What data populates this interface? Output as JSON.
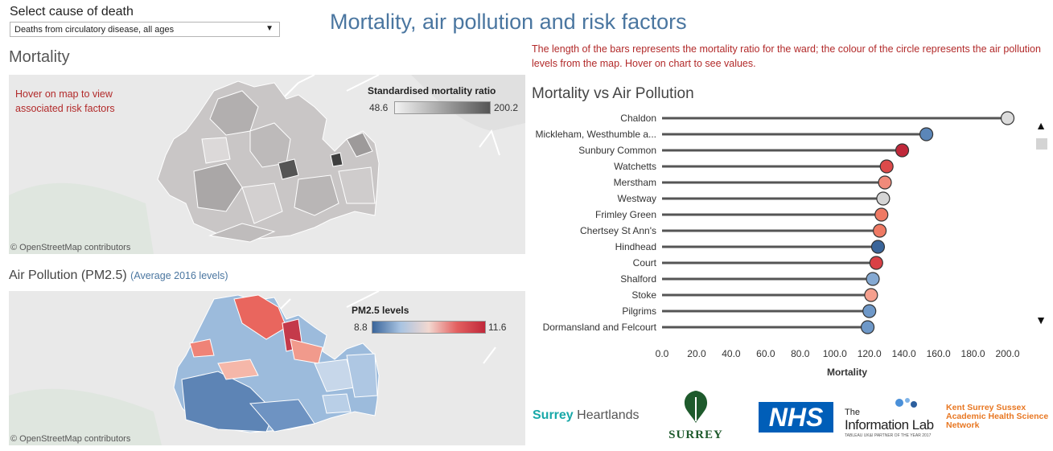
{
  "header": {
    "select_label": "Select cause of death",
    "select_value": "Deaths from circulatory disease, all ages",
    "title": "Mortality, air pollution and risk factors"
  },
  "mortality_map": {
    "heading": "Mortality",
    "hint": "Hover on map to view associated risk factors",
    "legend_title": "Standardised mortality ratio",
    "legend_min": "48.6",
    "legend_max": "200.2",
    "attribution": "© OpenStreetMap contributors"
  },
  "pollution_map": {
    "heading": "Air Pollution (PM2.5)",
    "subheading": "(Average 2016 levels)",
    "legend_title": "PM2.5 levels",
    "legend_min": "8.8",
    "legend_max": "11.6",
    "attribution": "© OpenStreetMap contributors"
  },
  "note": "The length of the bars represents the mortality ratio for the ward; the colour of the circle represents the air pollution levels from the map. Hover on chart to see values.",
  "chart_heading": "Mortality vs Air Pollution",
  "colors": {
    "low": "#3d6b9a",
    "mid": "#d9d9d9",
    "high": "#c0283a",
    "accent_title": "#4a76a0",
    "note": "#b22a2a"
  },
  "scroll": {
    "up_icon": "▲",
    "down_icon": "▼"
  },
  "chart_data": {
    "type": "bar",
    "xlabel": "Mortality",
    "ylabel": "",
    "xlim": [
      0,
      210
    ],
    "ticks": [
      0,
      20,
      40,
      60,
      80,
      100,
      120,
      140,
      160,
      180,
      200
    ],
    "tick_labels": [
      "0.0",
      "20.0",
      "40.0",
      "60.0",
      "80.0",
      "100.0",
      "120.0",
      "140.0",
      "160.0",
      "180.0",
      "200.0"
    ],
    "categories": [
      "Chaldon",
      "Mickleham, Westhumble a...",
      "Sunbury Common",
      "Watchetts",
      "Merstham",
      "Westway",
      "Frimley Green",
      "Chertsey St Ann's",
      "Hindhead",
      "Court",
      "Shalford",
      "Stoke",
      "Pilgrims",
      "Dormansland and Felcourt"
    ],
    "values": [
      200,
      153,
      139,
      130,
      129,
      128,
      127,
      126,
      125,
      124,
      122,
      121,
      120,
      119
    ],
    "circle_colors": [
      "#dcdcdc",
      "#5b86b8",
      "#c0283a",
      "#dc4a4a",
      "#f08a7a",
      "#d5d5d5",
      "#ef7a64",
      "#ef7a64",
      "#3a659a",
      "#d94045",
      "#85a9d2",
      "#f5a08e",
      "#6e98c8",
      "#6e98c8"
    ]
  },
  "logos": {
    "heartlands_a": "Surrey",
    "heartlands_b": "Heartlands",
    "surrey": "SURREY",
    "nhs": "NHS",
    "il_the": "The",
    "il_name": "Information Lab",
    "il_tag": "TABLEAU UK&I PARTNER OF THE YEAR 2017",
    "kss": "Kent Surrey Sussex Academic Health Science Network"
  }
}
